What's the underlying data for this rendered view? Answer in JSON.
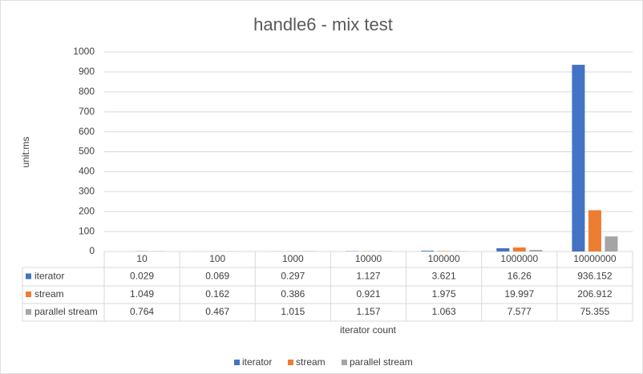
{
  "chart_data": {
    "type": "bar",
    "title": "handle6 - mix test",
    "x_label": "iterator count",
    "y_label": "unit:ms",
    "categories": [
      "10",
      "100",
      "1000",
      "10000",
      "100000",
      "1000000",
      "10000000"
    ],
    "series": [
      {
        "name": "iterator",
        "color": "#4472c4",
        "values": [
          0.029,
          0.069,
          0.297,
          1.127,
          3.621,
          16.26,
          936.152
        ]
      },
      {
        "name": "stream",
        "color": "#ed7d31",
        "values": [
          1.049,
          0.162,
          0.386,
          0.921,
          1.975,
          19.997,
          206.912
        ]
      },
      {
        "name": "parallel stream",
        "color": "#a5a5a5",
        "values": [
          0.764,
          0.467,
          1.015,
          1.157,
          1.063,
          7.577,
          75.355
        ]
      }
    ],
    "ylim": [
      0,
      1000
    ],
    "yticks": [
      0,
      100,
      200,
      300,
      400,
      500,
      600,
      700,
      800,
      900,
      1000
    ],
    "grid": true,
    "data_table": true,
    "legend": "bottom"
  }
}
